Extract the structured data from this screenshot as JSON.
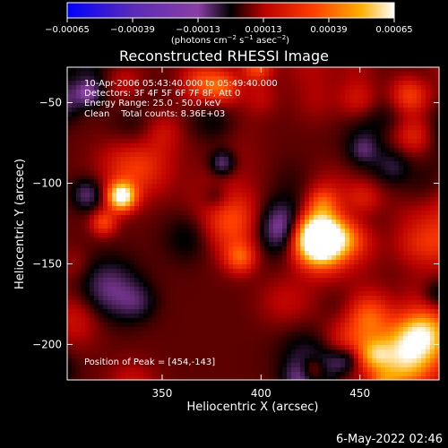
{
  "chart_data": {
    "type": "heatmap",
    "title": "Reconstructed RHESSI Image",
    "xlabel": "Heliocentric X (arcsec)",
    "ylabel": "Heliocentric Y (arcsec)",
    "xlim": [
      302,
      490
    ],
    "ylim": [
      -222,
      -28
    ],
    "x_ticks": [
      350,
      400,
      450
    ],
    "y_ticks": [
      -50,
      -100,
      -150,
      -200
    ],
    "x_tick_labels": [
      "350",
      "400",
      "450"
    ],
    "y_tick_labels": [
      "−50",
      "−100",
      "−150",
      "−200"
    ],
    "colorbar": {
      "range": [
        -0.00065,
        0.00065
      ],
      "tick_labels": [
        "−0.00065",
        "−0.00039",
        "−0.00013",
        "0.00013",
        "0.00039",
        "0.00065"
      ],
      "unit_prefix": "(photons cm",
      "unit_exp1": "−2",
      "unit_mid": " s",
      "unit_exp2": "−1",
      "unit_mid2": " asec",
      "unit_exp3": "−2",
      "unit_suffix": ")",
      "colors": [
        "#0000ff",
        "#5a2ab8",
        "#8a3fa6",
        "#000000",
        "#b80000",
        "#ff3c00",
        "#ffb000",
        "#ffffff"
      ]
    },
    "info_lines": [
      "10-Apr-2006 05:43:40.000 to 05:49:40.000",
      "Detectors: 3F 4F 5F 6F 7F 8F, Att 0",
      "Energy Range: 25.0 - 50.0 keV",
      "Clean    Total counts: 8.36E+03"
    ],
    "peak_label": "Position of Peak = [454,-143]",
    "peak_position": [
      454,
      -143
    ],
    "grid": false
  },
  "footer_date": "6-May-2022 02:46"
}
